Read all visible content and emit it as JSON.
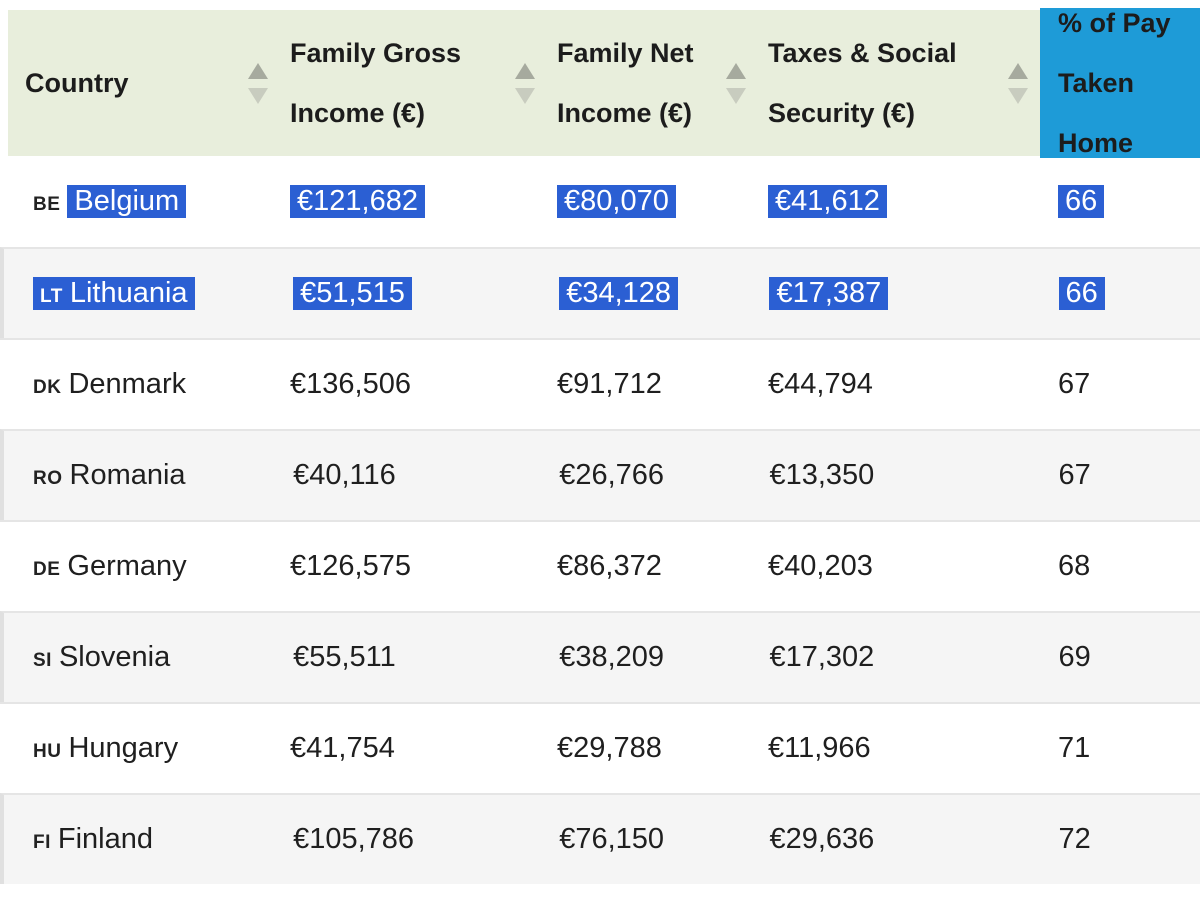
{
  "table": {
    "columns": [
      {
        "line1": "Country",
        "line2": ""
      },
      {
        "line1": "Family Gross",
        "line2": "Income (€)"
      },
      {
        "line1": "Family Net",
        "line2": "Income (€)"
      },
      {
        "line1": "Taxes & Social",
        "line2": "Security (€)"
      },
      {
        "line1": "% of Pay",
        "line2": "Taken Home"
      }
    ],
    "rows": [
      {
        "code": "BE",
        "country": "Belgium",
        "gross": "€121,682",
        "net": "€80,070",
        "taxes": "€41,612",
        "pct": "66",
        "selected": true,
        "code_selected": false
      },
      {
        "code": "LT",
        "country": "Lithuania",
        "gross": "€51,515",
        "net": "€34,128",
        "taxes": "€17,387",
        "pct": "66",
        "selected": true,
        "code_selected": true
      },
      {
        "code": "DK",
        "country": "Denmark",
        "gross": "€136,506",
        "net": "€91,712",
        "taxes": "€44,794",
        "pct": "67",
        "selected": false,
        "code_selected": false
      },
      {
        "code": "RO",
        "country": "Romania",
        "gross": "€40,116",
        "net": "€26,766",
        "taxes": "€13,350",
        "pct": "67",
        "selected": false,
        "code_selected": false
      },
      {
        "code": "DE",
        "country": "Germany",
        "gross": "€126,575",
        "net": "€86,372",
        "taxes": "€40,203",
        "pct": "68",
        "selected": false,
        "code_selected": false
      },
      {
        "code": "SI",
        "country": "Slovenia",
        "gross": "€55,511",
        "net": "€38,209",
        "taxes": "€17,302",
        "pct": "69",
        "selected": false,
        "code_selected": false
      },
      {
        "code": "HU",
        "country": "Hungary",
        "gross": "€41,754",
        "net": "€29,788",
        "taxes": "€11,966",
        "pct": "71",
        "selected": false,
        "code_selected": false
      },
      {
        "code": "FI",
        "country": "Finland",
        "gross": "€105,786",
        "net": "€76,150",
        "taxes": "€29,636",
        "pct": "72",
        "selected": false,
        "code_selected": false
      }
    ]
  },
  "colors": {
    "header_bg": "#e8eedc",
    "highlight_column_bg": "#1e9bd7",
    "selection_bg": "#2b5fd3",
    "alt_row_bg": "#f5f5f5",
    "text": "#1f1f1f",
    "sort_arrow_dark": "#a6aa9e",
    "sort_arrow_light": "#c8ccbf"
  }
}
